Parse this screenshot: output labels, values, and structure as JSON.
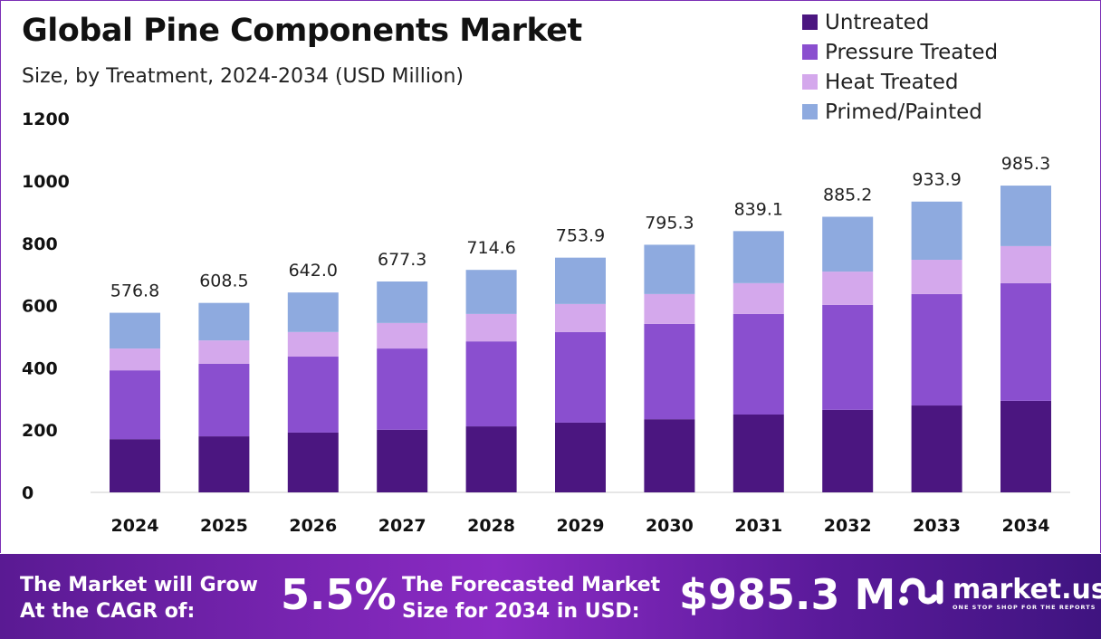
{
  "chart_data": {
    "type": "bar",
    "stacked": true,
    "title": "Global Pine Components Market",
    "subtitle": "Size, by Treatment, 2024-2034 (USD Million)",
    "categories": [
      "2024",
      "2025",
      "2026",
      "2027",
      "2028",
      "2029",
      "2030",
      "2031",
      "2032",
      "2033",
      "2034"
    ],
    "series": [
      {
        "name": "Untreated",
        "color": "#4b1680",
        "values": [
          171,
          180,
          192,
          201,
          212,
          224,
          235,
          250,
          265,
          279,
          294
        ]
      },
      {
        "name": "Pressure Treated",
        "color": "#8a4fcf",
        "values": [
          221,
          233,
          244,
          261,
          273,
          291,
          306,
          323,
          337,
          358,
          378
        ]
      },
      {
        "name": "Heat Treated",
        "color": "#d4a8ec",
        "values": [
          70,
          75,
          79,
          82,
          88,
          90,
          96,
          99,
          107,
          110,
          119
        ]
      },
      {
        "name": "Primed/Painted",
        "color": "#8eaadf",
        "values": [
          114.8,
          120.5,
          127.0,
          133.3,
          141.6,
          148.9,
          158.3,
          167.1,
          176.2,
          186.9,
          194.3
        ]
      }
    ],
    "totals": [
      "576.8",
      "608.5",
      "642.0",
      "677.3",
      "714.6",
      "753.9",
      "795.3",
      "839.1",
      "885.2",
      "933.9",
      "985.3"
    ],
    "yticks": [
      "0",
      "200",
      "400",
      "600",
      "800",
      "1000",
      "1200"
    ],
    "ylim": [
      0,
      1200
    ],
    "grid": false,
    "legend": "top-right"
  },
  "footer": {
    "cagr_label_1": "The Market will Grow",
    "cagr_label_2": "At the CAGR of:",
    "cagr_value": "5.5%",
    "forecast_label_1": "The Forecasted Market",
    "forecast_label_2": "Size for 2034 in USD:",
    "forecast_value": "$985.3 M",
    "logo_text": "market.us",
    "logo_tagline": "ONE STOP SHOP FOR THE REPORTS"
  }
}
